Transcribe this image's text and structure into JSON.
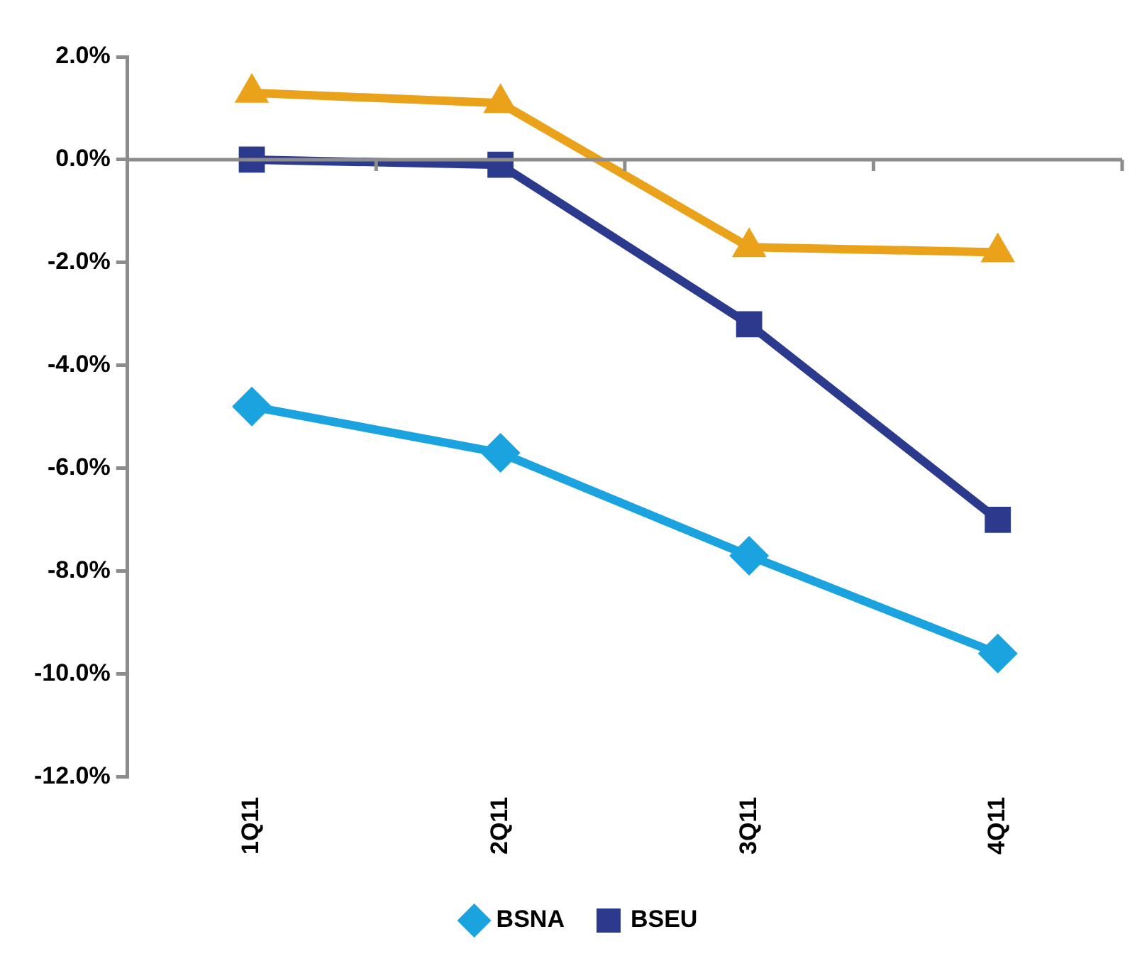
{
  "chart_data": {
    "type": "line",
    "categories": [
      "1Q11",
      "2Q11",
      "3Q11",
      "4Q11"
    ],
    "series": [
      {
        "name": "BSNA",
        "color": "#1ba3e0",
        "marker": "diamond",
        "values": [
          -4.8,
          -5.7,
          -7.7,
          -9.6
        ]
      },
      {
        "name": "BSEU",
        "color": "#2b3a8c",
        "marker": "square",
        "values": [
          0.0,
          -0.1,
          -3.2,
          -7.0
        ]
      },
      {
        "color": "#eaa21a",
        "marker": "triangle",
        "values": [
          1.3,
          1.1,
          -1.7,
          -1.8
        ]
      }
    ],
    "ylim": [
      -12,
      2
    ],
    "yticks": [
      {
        "value": 2,
        "label": "2.0%"
      },
      {
        "value": 0,
        "label": "0.0%"
      },
      {
        "value": -2,
        "label": "-2.0%"
      },
      {
        "value": -4,
        "label": "-4.0%"
      },
      {
        "value": -6,
        "label": "-6.0%"
      },
      {
        "value": -8,
        "label": "-8.0%"
      },
      {
        "value": -10,
        "label": "-10.0%"
      },
      {
        "value": -12,
        "label": "-12.0%"
      }
    ],
    "legend": "bottom",
    "line_style": "solid"
  }
}
